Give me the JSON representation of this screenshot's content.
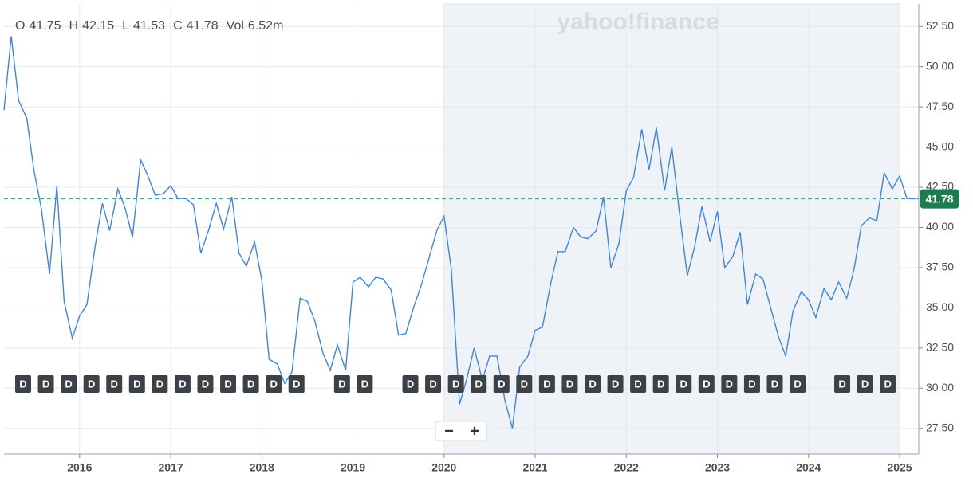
{
  "chart_data": {
    "type": "line",
    "watermark": "yahoo!finance",
    "ohlc": [
      {
        "label": "O",
        "value": "41.75"
      },
      {
        "label": "H",
        "value": "42.15"
      },
      {
        "label": "L",
        "value": "41.53"
      },
      {
        "label": "C",
        "value": "41.78"
      },
      {
        "label": "Vol",
        "value": "6.52m"
      }
    ],
    "last_price": 41.78,
    "last_price_color": "#1b7d4f",
    "color": "#3d85e6",
    "x": [
      2015.17,
      2015.25,
      2015.33,
      2015.42,
      2015.5,
      2015.58,
      2015.67,
      2015.75,
      2015.83,
      2015.92,
      2016,
      2016.08,
      2016.17,
      2016.25,
      2016.33,
      2016.42,
      2016.5,
      2016.58,
      2016.67,
      2016.75,
      2016.83,
      2016.92,
      2017,
      2017.08,
      2017.17,
      2017.25,
      2017.33,
      2017.42,
      2017.5,
      2017.58,
      2017.67,
      2017.75,
      2017.83,
      2017.92,
      2018,
      2018.08,
      2018.17,
      2018.25,
      2018.33,
      2018.42,
      2018.5,
      2018.58,
      2018.67,
      2018.75,
      2018.83,
      2018.92,
      2019,
      2019.08,
      2019.17,
      2019.25,
      2019.33,
      2019.42,
      2019.5,
      2019.58,
      2019.67,
      2019.75,
      2019.83,
      2019.92,
      2020,
      2020.08,
      2020.17,
      2020.25,
      2020.33,
      2020.42,
      2020.5,
      2020.58,
      2020.67,
      2020.75,
      2020.83,
      2020.92,
      2021,
      2021.08,
      2021.17,
      2021.25,
      2021.33,
      2021.42,
      2021.5,
      2021.58,
      2021.67,
      2021.75,
      2021.83,
      2021.92,
      2022,
      2022.08,
      2022.17,
      2022.25,
      2022.33,
      2022.42,
      2022.5,
      2022.58,
      2022.67,
      2022.75,
      2022.83,
      2022.92,
      2023,
      2023.08,
      2023.17,
      2023.25,
      2023.33,
      2023.42,
      2023.5,
      2023.58,
      2023.67,
      2023.75,
      2023.83,
      2023.92,
      2024,
      2024.08,
      2024.17,
      2024.25,
      2024.33,
      2024.42,
      2024.5,
      2024.58,
      2024.67,
      2024.75,
      2024.83,
      2024.92,
      2025,
      2025.08,
      2025.17
    ],
    "values": [
      47.3,
      51.9,
      47.9,
      46.8,
      43.5,
      41.2,
      37.1,
      42.6,
      35.4,
      33.1,
      34.5,
      35.2,
      38.8,
      41.5,
      39.8,
      42.4,
      41.2,
      39.4,
      44.2,
      43.2,
      42.0,
      42.1,
      42.6,
      41.8,
      41.8,
      41.4,
      38.4,
      39.9,
      41.5,
      39.9,
      41.9,
      38.4,
      37.6,
      39.1,
      36.7,
      31.8,
      31.5,
      30.3,
      31.0,
      35.6,
      35.4,
      34.2,
      32.2,
      31.1,
      32.7,
      31.1,
      36.6,
      36.9,
      36.3,
      36.9,
      36.8,
      36.1,
      33.3,
      33.4,
      35.1,
      36.4,
      38.0,
      39.8,
      40.7,
      37.4,
      29.0,
      30.6,
      32.5,
      30.5,
      32.0,
      32.0,
      29.2,
      27.5,
      31.3,
      32.0,
      33.6,
      33.8,
      36.5,
      38.5,
      38.5,
      40.0,
      39.4,
      39.3,
      39.8,
      41.9,
      37.5,
      39.0,
      42.3,
      43.1,
      46.1,
      43.6,
      46.2,
      42.3,
      45.0,
      41.1,
      37.0,
      38.8,
      41.3,
      39.1,
      41.0,
      37.5,
      38.2,
      39.7,
      35.2,
      37.1,
      36.8,
      35.1,
      33.2,
      32.0,
      34.8,
      36.0,
      35.5,
      34.4,
      36.2,
      35.5,
      36.6,
      35.6,
      37.4,
      40.1,
      40.6,
      40.4,
      43.4,
      42.4,
      43.2,
      41.8,
      41.78
    ],
    "xlim": [
      2015.17,
      2025.21
    ],
    "ylim": [
      25.9,
      53.9
    ],
    "xticks": [
      2016,
      2017,
      2018,
      2019,
      2020,
      2021,
      2022,
      2023,
      2024,
      2025
    ],
    "yticks": [
      {
        "value": 27.5,
        "label": "27.50"
      },
      {
        "value": 30,
        "label": "30.00"
      },
      {
        "value": 32.5,
        "label": "32.50"
      },
      {
        "value": 35,
        "label": "35.00"
      },
      {
        "value": 37.5,
        "label": "37.50"
      },
      {
        "value": 40,
        "label": "40.00"
      },
      {
        "value": 42.5,
        "label": "42.50"
      },
      {
        "value": 45,
        "label": "45.00"
      },
      {
        "value": 47.5,
        "label": "47.50"
      },
      {
        "value": 50,
        "label": "50.00"
      },
      {
        "value": 52.5,
        "label": "52.50"
      }
    ],
    "grid": true,
    "highlight_range": [
      2020,
      2025
    ],
    "dividend_label": "D",
    "dividends": [
      2015.38,
      2015.63,
      2015.88,
      2016.13,
      2016.38,
      2016.63,
      2016.88,
      2017.13,
      2017.38,
      2017.63,
      2017.88,
      2018.13,
      2018.38,
      2018.88,
      2019.13,
      2019.63,
      2019.88,
      2020.13,
      2020.38,
      2020.63,
      2020.88,
      2021.13,
      2021.38,
      2021.63,
      2021.88,
      2022.13,
      2022.38,
      2022.63,
      2022.88,
      2023.13,
      2023.38,
      2023.63,
      2023.88,
      2024.37,
      2024.62,
      2024.87
    ],
    "zoom_out": "−",
    "zoom_in": "+"
  }
}
